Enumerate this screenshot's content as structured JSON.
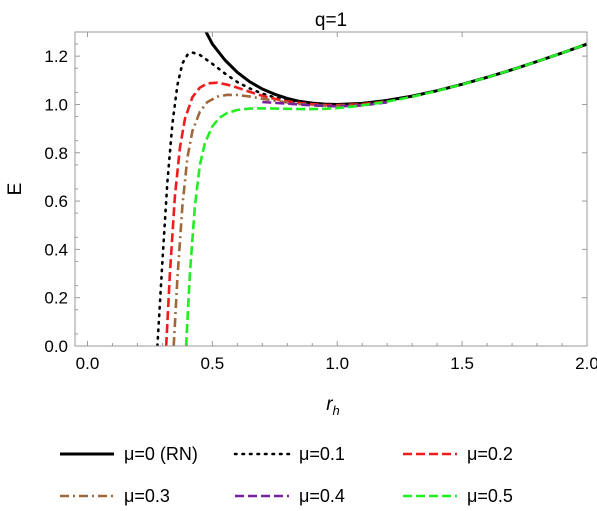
{
  "chart_data": {
    "type": "line",
    "title": "q=1",
    "xlabel": "r",
    "xlabel_sub": "h",
    "ylabel": "E",
    "xlim": [
      -0.05,
      2.0
    ],
    "ylim": [
      0.0,
      1.3
    ],
    "x_ticks": [
      0.0,
      0.5,
      1.0,
      1.5,
      2.0
    ],
    "x_tick_labels": [
      "0.0",
      "0.5",
      "1.0",
      "1.5",
      "2.0"
    ],
    "y_ticks": [
      0.0,
      0.2,
      0.4,
      0.6,
      0.8,
      1.0,
      1.2
    ],
    "y_tick_labels": [
      "0.0",
      "0.2",
      "0.4",
      "0.6",
      "0.8",
      "1.0",
      "1.2"
    ],
    "grid": false,
    "legend_position": "bottom",
    "series": [
      {
        "name": "μ=0 (RN)",
        "color": "#000000",
        "style": "solid",
        "x": [
          0.475,
          0.5,
          0.55,
          0.6,
          0.65,
          0.7,
          0.75,
          0.8,
          0.85,
          0.9,
          0.95,
          1.0,
          1.1,
          1.2,
          1.3,
          1.4,
          1.5,
          1.6,
          1.7,
          1.8,
          1.9,
          2.0
        ],
        "y": [
          1.3,
          1.25,
          1.184,
          1.133,
          1.094,
          1.064,
          1.042,
          1.025,
          1.0125,
          1.0056,
          1.0013,
          1.0,
          1.0045,
          1.0167,
          1.0346,
          1.057,
          1.0833,
          1.1125,
          1.1441,
          1.1778,
          1.2132,
          1.25
        ]
      },
      {
        "name": "μ=0.1",
        "color": "#000000",
        "style": "dotted",
        "x": [
          0.28,
          0.3,
          0.32,
          0.34,
          0.36,
          0.38,
          0.4,
          0.42,
          0.45,
          0.5,
          0.55,
          0.6,
          0.65,
          0.7,
          0.75,
          0.8,
          0.85,
          0.9,
          0.95,
          1.0,
          1.1,
          1.2
        ],
        "y": [
          0.0,
          0.35,
          0.68,
          0.92,
          1.08,
          1.17,
          1.205,
          1.215,
          1.205,
          1.168,
          1.128,
          1.093,
          1.066,
          1.045,
          1.029,
          1.017,
          1.008,
          1.003,
          1.0,
          0.999,
          1.003,
          1.016
        ]
      },
      {
        "name": "μ=0.2",
        "color": "#ee1c1c",
        "style": "dashed",
        "x": [
          0.315,
          0.33,
          0.35,
          0.37,
          0.39,
          0.42,
          0.45,
          0.48,
          0.52,
          0.56,
          0.6,
          0.65,
          0.7,
          0.75,
          0.8,
          0.85,
          0.9,
          0.95,
          1.0,
          1.1,
          1.2
        ],
        "y": [
          0.0,
          0.3,
          0.62,
          0.82,
          0.94,
          1.03,
          1.07,
          1.087,
          1.09,
          1.082,
          1.07,
          1.052,
          1.036,
          1.023,
          1.013,
          1.006,
          1.001,
          0.998,
          0.997,
          1.001,
          1.013
        ]
      },
      {
        "name": "μ=0.3",
        "color": "#a0683a",
        "style": "dashdot",
        "x": [
          0.345,
          0.36,
          0.38,
          0.4,
          0.42,
          0.45,
          0.48,
          0.52,
          0.56,
          0.6,
          0.65,
          0.7,
          0.75,
          0.8,
          0.85,
          0.9,
          0.95,
          1.0,
          1.1,
          1.2
        ],
        "y": [
          0.0,
          0.28,
          0.58,
          0.78,
          0.89,
          0.97,
          1.01,
          1.032,
          1.04,
          1.039,
          1.033,
          1.024,
          1.015,
          1.008,
          1.002,
          0.998,
          0.995,
          0.994,
          0.998,
          1.01
        ]
      },
      {
        "name": "μ=0.4",
        "color": "#7a1f9e",
        "style": "dashed",
        "x": [
          0.7,
          0.8,
          0.9,
          1.0,
          1.1,
          1.2
        ],
        "y": [
          1.01,
          1.003,
          0.996,
          0.992,
          0.996,
          1.009
        ]
      },
      {
        "name": "μ=0.5",
        "color": "#22ee22",
        "style": "dashed",
        "x": [
          0.395,
          0.41,
          0.43,
          0.45,
          0.47,
          0.5,
          0.53,
          0.56,
          0.6,
          0.65,
          0.7,
          0.75,
          0.8,
          0.85,
          0.9,
          0.95,
          1.0,
          1.05,
          1.1,
          1.2,
          1.3,
          1.4,
          1.5,
          1.6,
          1.7,
          1.8,
          1.9,
          2.0
        ],
        "y": [
          0.0,
          0.3,
          0.58,
          0.75,
          0.84,
          0.91,
          0.946,
          0.965,
          0.977,
          0.983,
          0.984,
          0.983,
          0.982,
          0.981,
          0.981,
          0.982,
          0.985,
          0.99,
          0.996,
          1.012,
          1.032,
          1.056,
          1.083,
          1.112,
          1.144,
          1.178,
          1.213,
          1.25
        ]
      }
    ]
  }
}
